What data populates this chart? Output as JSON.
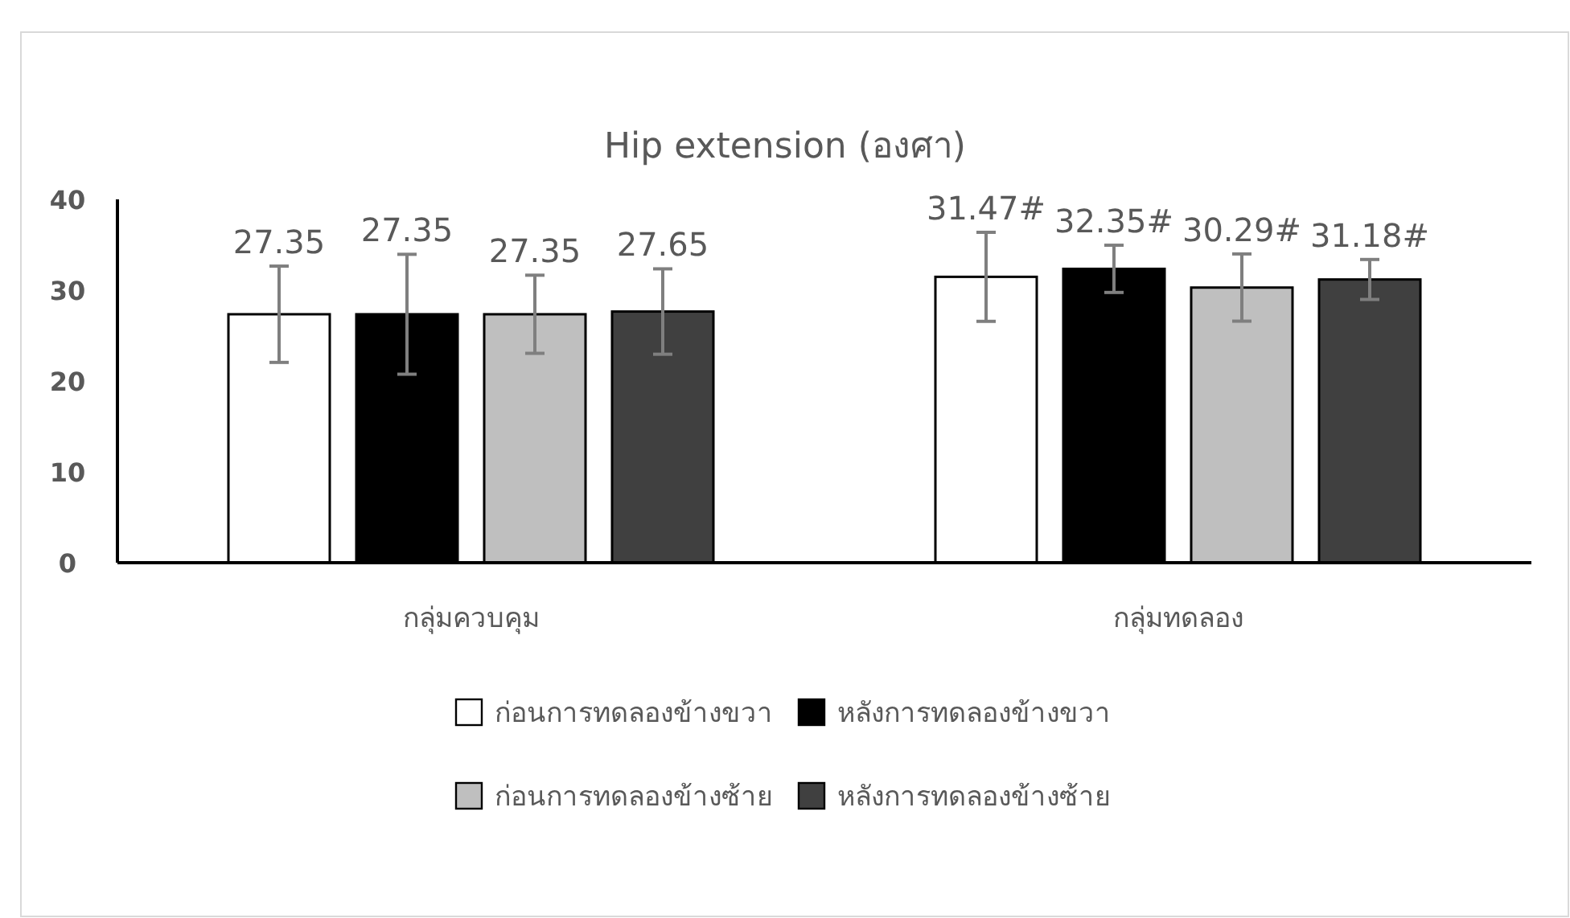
{
  "chart_data": {
    "type": "bar",
    "title": "Hip extension (องศา)",
    "categories": [
      "กลุ่มควบคุม",
      "กลุ่มทดลอง"
    ],
    "series": [
      {
        "name": "ก่อนการทดลองข้างขวา",
        "color": "#ffffff",
        "values": [
          27.35,
          31.47
        ],
        "errors": [
          5.3,
          4.9
        ],
        "value_labels": [
          "27.35",
          "31.47#"
        ]
      },
      {
        "name": "หลังการทดลองข้างขวา",
        "color": "#000000",
        "values": [
          27.35,
          32.35
        ],
        "errors": [
          6.6,
          2.6
        ],
        "value_labels": [
          "27.35",
          "32.35#"
        ]
      },
      {
        "name": "ก่อนการทดลองข้างซ้าย",
        "color": "#bfbfbf",
        "values": [
          27.35,
          30.29
        ],
        "errors": [
          4.3,
          3.7
        ],
        "value_labels": [
          "27.35",
          "30.29#"
        ]
      },
      {
        "name": "หลังการทดลองข้างซ้าย",
        "color": "#404040",
        "values": [
          27.65,
          31.18
        ],
        "errors": [
          4.7,
          2.2
        ],
        "value_labels": [
          "27.65",
          "31.18#"
        ]
      }
    ],
    "ylim": [
      0,
      40
    ],
    "yticks": [
      0,
      10,
      20,
      30,
      40
    ],
    "legend": "bottom"
  }
}
